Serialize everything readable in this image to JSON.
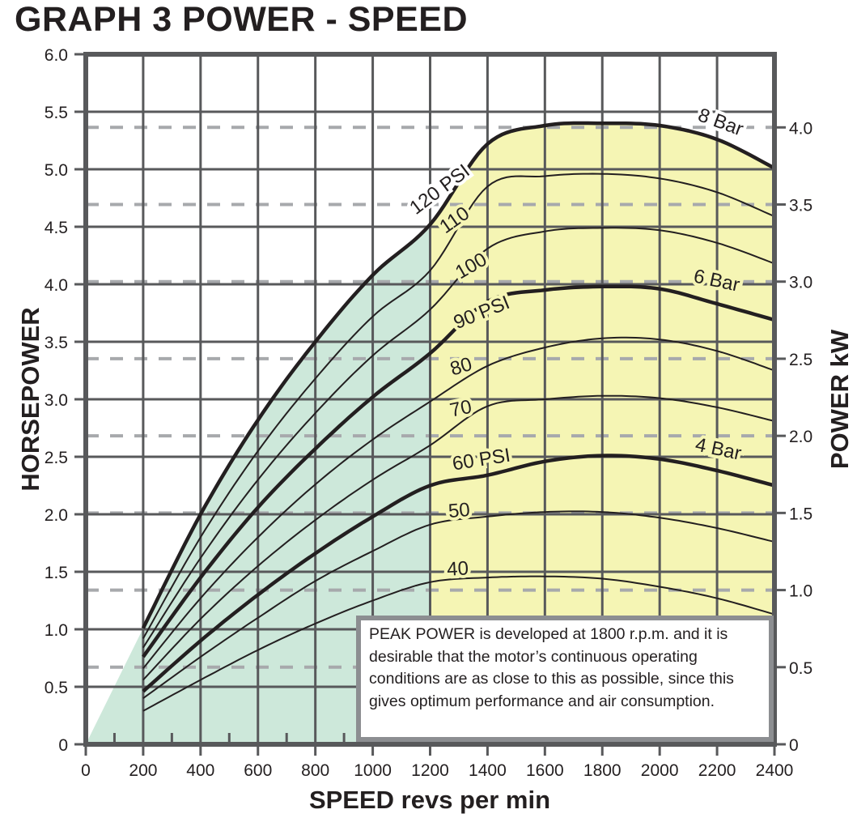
{
  "title": "GRAPH 3 POWER - SPEED",
  "note": "PEAK POWER is developed at 1800 r.p.m. and it is desirable that the motor’s continuous operating conditions are as close to this as possible, since this gives optimum performance and air consumption.",
  "colors": {
    "grid": "#58595b",
    "dashed": "#a7a9ac",
    "green_fill": "#cde8da",
    "yellow_fill": "#f5f5b4",
    "curve": "#231f20",
    "note_border": "#8c8e91"
  },
  "chart_data": {
    "type": "line",
    "title": "GRAPH 3 POWER - SPEED",
    "xlabel": "SPEED revs per min",
    "ylabel": "HORSEPOWER",
    "y2label": "POWER kW",
    "xlim": [
      0,
      2400
    ],
    "ylim": [
      0,
      6.0
    ],
    "y2lim": [
      0,
      4.47
    ],
    "x_ticks": [
      0,
      200,
      400,
      600,
      800,
      1000,
      1200,
      1400,
      1600,
      1800,
      2000,
      2200,
      2400
    ],
    "y_ticks": [
      "0",
      "0.5",
      "1.0",
      "1.5",
      "2.0",
      "2.5",
      "3.0",
      "3.5",
      "4.0",
      "4.5",
      "5.0",
      "5.5",
      "6.0"
    ],
    "y2_ticks": [
      "0",
      "0.5",
      "1.0",
      "1.5",
      "2.0",
      "2.5",
      "3.0",
      "3.5",
      "4.0"
    ],
    "grid": true,
    "regions": [
      {
        "name": "green",
        "x_range": [
          0,
          1200
        ]
      },
      {
        "name": "yellow",
        "x_range": [
          1200,
          2400
        ]
      }
    ],
    "x": [
      200,
      400,
      600,
      800,
      1000,
      1200,
      1400,
      1600,
      1800,
      2000,
      2200,
      2400
    ],
    "series": [
      {
        "name": "120 PSI",
        "label": "120 PSI",
        "right_label": "8 Bar",
        "bold": true,
        "values": [
          1.01,
          2.0,
          2.82,
          3.5,
          4.08,
          4.52,
          5.22,
          5.38,
          5.4,
          5.38,
          5.26,
          5.01
        ]
      },
      {
        "name": "110",
        "label": "110",
        "bold": false,
        "values": [
          0.92,
          1.8,
          2.55,
          3.18,
          3.72,
          4.12,
          4.85,
          4.94,
          4.96,
          4.92,
          4.8,
          4.59
        ]
      },
      {
        "name": "100",
        "label": "100",
        "bold": false,
        "values": [
          0.84,
          1.62,
          2.3,
          2.88,
          3.38,
          3.78,
          4.31,
          4.46,
          4.49,
          4.47,
          4.36,
          4.18
        ]
      },
      {
        "name": "90 PSI",
        "label": "90 PSI",
        "right_label": "6 Bar",
        "bold": true,
        "values": [
          0.76,
          1.45,
          2.06,
          2.57,
          3.02,
          3.4,
          3.85,
          3.95,
          3.98,
          3.96,
          3.83,
          3.69
        ]
      },
      {
        "name": "80",
        "label": "80",
        "bold": false,
        "values": [
          0.66,
          1.27,
          1.8,
          2.26,
          2.65,
          2.98,
          3.29,
          3.45,
          3.53,
          3.52,
          3.42,
          3.25
        ]
      },
      {
        "name": "70",
        "label": "70",
        "bold": false,
        "values": [
          0.56,
          1.09,
          1.55,
          1.95,
          2.3,
          2.6,
          2.94,
          3.0,
          3.03,
          3.01,
          2.93,
          2.81
        ]
      },
      {
        "name": "60 PSI",
        "label": "60 PSI",
        "right_label": "4 Bar",
        "bold": true,
        "values": [
          0.46,
          0.9,
          1.3,
          1.66,
          1.98,
          2.25,
          2.34,
          2.46,
          2.51,
          2.48,
          2.38,
          2.25
        ]
      },
      {
        "name": "50",
        "label": "50",
        "bold": false,
        "values": [
          0.4,
          0.76,
          1.1,
          1.42,
          1.68,
          1.91,
          1.98,
          2.02,
          2.02,
          1.97,
          1.88,
          1.76
        ]
      },
      {
        "name": "40",
        "label": "40",
        "bold": false,
        "values": [
          0.29,
          0.56,
          0.82,
          1.05,
          1.25,
          1.41,
          1.45,
          1.46,
          1.44,
          1.37,
          1.27,
          1.13
        ]
      }
    ],
    "annotations": [
      "PEAK POWER is developed at 1800 r.p.m. and it is desirable that the motor’s continuous operating conditions are as close to this as possible, since this gives optimum performance and air consumption."
    ]
  }
}
